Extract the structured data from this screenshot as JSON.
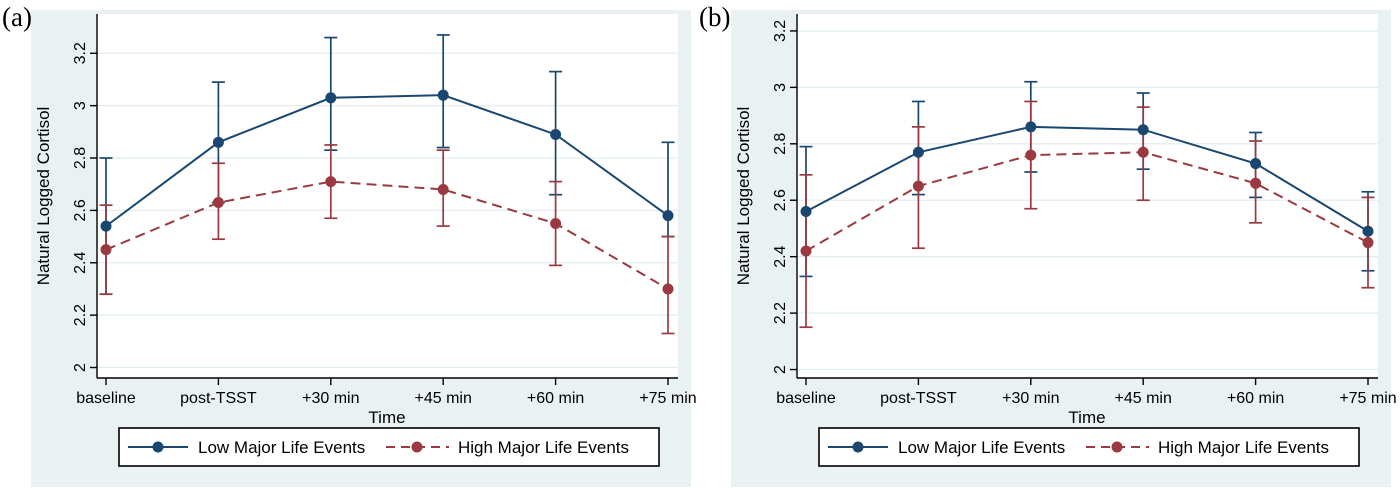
{
  "colors": {
    "panel_background": "#eaf1f3",
    "plot_background": "#ffffff",
    "gridline": "#e2edf0",
    "axis": "#000000",
    "text": "#000000",
    "low_series": "#1a476f",
    "high_series": "#9a3a40",
    "legend_background": "#ffffff",
    "legend_border": "#000000"
  },
  "chart_data": [
    {
      "id": "a",
      "tag": "(a)",
      "type": "line",
      "xlabel": "Time",
      "ylabel": "Natural Logged Cortisol",
      "categories": [
        "baseline",
        "post-TSST",
        "+30 min",
        "+45 min",
        "+60 min",
        "+75 min"
      ],
      "yticks": [
        2,
        2.2,
        2.4,
        2.6,
        2.8,
        3,
        3.2
      ],
      "ytick_labels": [
        "2",
        "2.2",
        "2.4",
        "2.6",
        "2.8",
        "3",
        "3.2"
      ],
      "ylim": [
        1.96,
        3.35
      ],
      "grid": true,
      "legend_position": "bottom",
      "series": [
        {
          "name": "Low Major Life Events",
          "style": "solid",
          "color_key": "low_series",
          "values": [
            2.54,
            2.86,
            3.03,
            3.04,
            2.89,
            2.58
          ],
          "ci_low": [
            2.28,
            2.63,
            2.83,
            2.84,
            2.66,
            2.5
          ],
          "ci_high": [
            2.8,
            3.09,
            3.26,
            3.27,
            3.13,
            2.86
          ]
        },
        {
          "name": "High Major Life Events",
          "style": "dashed",
          "color_key": "high_series",
          "values": [
            2.45,
            2.63,
            2.71,
            2.68,
            2.55,
            2.3
          ],
          "ci_low": [
            2.28,
            2.49,
            2.57,
            2.54,
            2.39,
            2.13
          ],
          "ci_high": [
            2.62,
            2.78,
            2.85,
            2.83,
            2.71,
            2.5
          ]
        }
      ]
    },
    {
      "id": "b",
      "tag": "(b)",
      "type": "line",
      "xlabel": "Time",
      "ylabel": "Natural Logged Cortisol",
      "categories": [
        "baseline",
        "post-TSST",
        "+30 min",
        "+45 min",
        "+60 min",
        "+75 min"
      ],
      "yticks": [
        2,
        2.2,
        2.4,
        2.6,
        2.8,
        3,
        3.2
      ],
      "ytick_labels": [
        "2",
        "2.2",
        "2.4",
        "2.6",
        "2.8",
        "3",
        "3.2"
      ],
      "ylim": [
        1.97,
        3.26
      ],
      "grid": true,
      "legend_position": "bottom",
      "series": [
        {
          "name": "Low Major Life Events",
          "style": "solid",
          "color_key": "low_series",
          "values": [
            2.56,
            2.77,
            2.86,
            2.85,
            2.73,
            2.49
          ],
          "ci_low": [
            2.33,
            2.62,
            2.7,
            2.71,
            2.61,
            2.35
          ],
          "ci_high": [
            2.79,
            2.95,
            3.02,
            2.98,
            2.84,
            2.63
          ]
        },
        {
          "name": "High Major Life Events",
          "style": "dashed",
          "color_key": "high_series",
          "values": [
            2.42,
            2.65,
            2.76,
            2.77,
            2.66,
            2.45
          ],
          "ci_low": [
            2.15,
            2.43,
            2.57,
            2.6,
            2.52,
            2.29
          ],
          "ci_high": [
            2.69,
            2.86,
            2.95,
            2.93,
            2.81,
            2.61
          ]
        }
      ]
    }
  ]
}
